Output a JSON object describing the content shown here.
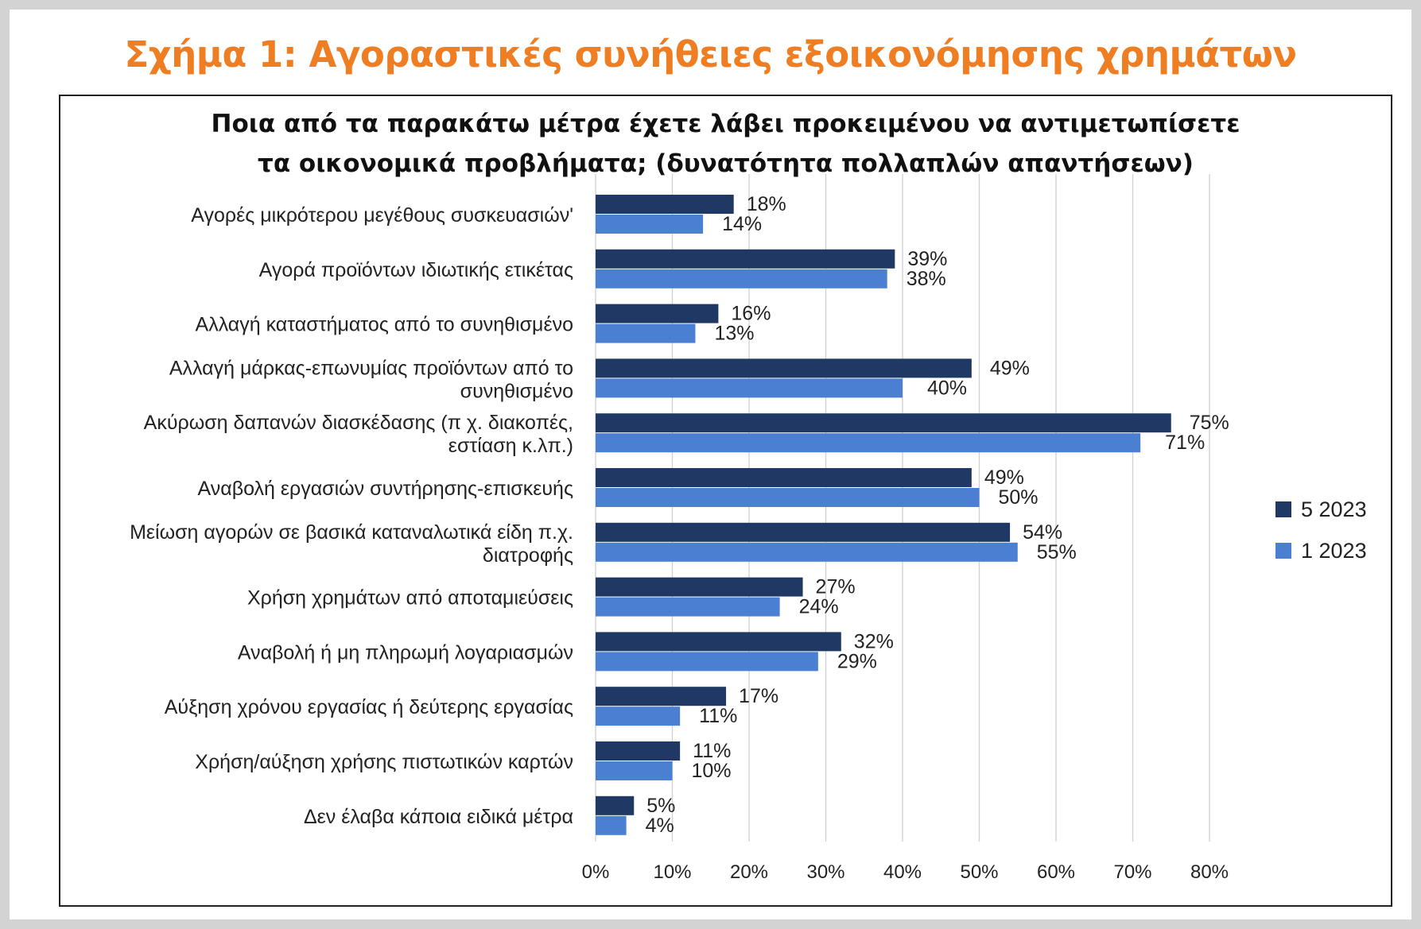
{
  "figure_title": "Σχήμα 1: Αγοραστικές συνήθειες εξοικονόμησης χρημάτων",
  "chart_data": {
    "type": "bar",
    "orientation": "horizontal",
    "title_lines": [
      "Ποια από τα παρακάτω μέτρα έχετε λάβει προκειμένου να αντιμετωπίσετε",
      "τα οικονομικά προβλήματα; (δυνατότητα πολλαπλών απαντήσεων)"
    ],
    "categories": [
      [
        "Αγορές μικρότερου μεγέθους συσκευασιών'"
      ],
      [
        "Αγορά προϊόντων ιδιωτικής ετικέτας"
      ],
      [
        "Αλλαγή καταστήματος από το συνηθισμένο"
      ],
      [
        "Αλλαγή μάρκας-επωνυμίας προϊόντων από το",
        "συνηθισμένο"
      ],
      [
        "Ακύρωση δαπανών διασκέδασης (π χ. διακοπές,",
        "εστίαση κ.λπ.)"
      ],
      [
        "Αναβολή εργασιών συντήρησης-επισκευής"
      ],
      [
        "Μείωση αγορών σε βασικά καταναλωτικά είδη π.χ.",
        "διατροφής"
      ],
      [
        "Χρήση χρημάτων από αποταμιεύσεις"
      ],
      [
        "Αναβολή ή μη πληρωμή λογαριασμών"
      ],
      [
        "Αύξηση χρόνου εργασίας ή δεύτερης  εργασίας"
      ],
      [
        "Χρήση/αύξηση χρήσης πιστωτικών καρτών"
      ],
      [
        "Δεν έλαβα κάποια ειδικά μέτρα"
      ]
    ],
    "series": [
      {
        "name": "5 2023",
        "color": "#1f3864",
        "values": [
          18,
          39,
          16,
          49,
          75,
          49,
          54,
          27,
          32,
          17,
          11,
          5
        ],
        "labels": [
          "18%",
          "39%",
          "16%",
          "49%",
          "75%",
          "49%",
          "54%",
          "27%",
          "32%",
          "17%",
          "11%",
          "5%"
        ]
      },
      {
        "name": "1 2023",
        "color": "#4a7fd1",
        "values": [
          14,
          38,
          13,
          40,
          71,
          50,
          55,
          24,
          29,
          11,
          10,
          4
        ],
        "labels": [
          "14%",
          "38%",
          "13%",
          "40%",
          "71%",
          "50%",
          "55%",
          "24%",
          "29%",
          "11%",
          "10%",
          "4%"
        ]
      }
    ],
    "xlim": [
      0,
      80
    ],
    "x_ticks": [
      "0%",
      "10%",
      "20%",
      "30%",
      "40%",
      "50%",
      "60%",
      "70%",
      "80%"
    ],
    "grid": true,
    "legend_position": "right"
  }
}
